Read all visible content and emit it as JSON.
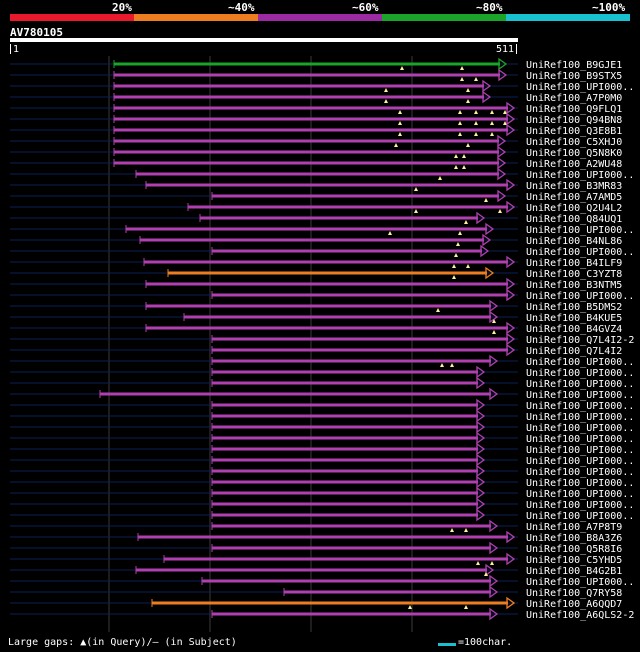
{
  "legend": {
    "segments": [
      {
        "label": "20%",
        "color": "#e8192c"
      },
      {
        "label": "~40%",
        "color": "#ee7d22"
      },
      {
        "label": "~60%",
        "color": "#9b2aa3"
      },
      {
        "label": "~80%",
        "color": "#1aa52a"
      },
      {
        "label": "~100%",
        "color": "#19c0d0"
      }
    ]
  },
  "query": {
    "name": "AV780105",
    "start": "1",
    "end": "511"
  },
  "footer": {
    "text": "Large gaps: ▲(in Query)/— (in Subject)",
    "scale_label": "=100char."
  },
  "colors": {
    "purple": "#b040b0",
    "green": "#1aa52a",
    "orange": "#ee7d22",
    "track": "#0d1f55",
    "grid": "#3a3a3a",
    "gap": "#fff0a0"
  },
  "hits": [
    {
      "name": "UniRef100_B9GJE1",
      "color": "green",
      "start": 114,
      "end": 506,
      "gaps": [
        402,
        462
      ]
    },
    {
      "name": "UniRef100_B9STX5",
      "color": "purple",
      "start": 114,
      "end": 506,
      "gaps": [
        462,
        476
      ]
    },
    {
      "name": "UniRef100_UPI000..",
      "color": "purple",
      "start": 114,
      "end": 490,
      "gaps": [
        386,
        468
      ]
    },
    {
      "name": "UniRef100_A7P0M0",
      "color": "purple",
      "start": 114,
      "end": 490,
      "gaps": [
        386,
        468
      ]
    },
    {
      "name": "UniRef100_Q9FLQ1",
      "color": "purple",
      "start": 114,
      "end": 514,
      "gaps": [
        400,
        460,
        476,
        492,
        505
      ]
    },
    {
      "name": "UniRef100_Q94BN8",
      "color": "purple",
      "start": 114,
      "end": 514,
      "gaps": [
        400,
        460,
        476,
        492,
        505
      ]
    },
    {
      "name": "UniRef100_Q3E8B1",
      "color": "purple",
      "start": 114,
      "end": 514,
      "gaps": [
        400,
        460,
        476,
        492
      ]
    },
    {
      "name": "UniRef100_C5XHJ0",
      "color": "purple",
      "start": 114,
      "end": 505,
      "gaps": [
        396,
        468
      ]
    },
    {
      "name": "UniRef100_Q5N8K0",
      "color": "purple",
      "start": 114,
      "end": 505,
      "gaps": [
        456,
        464
      ]
    },
    {
      "name": "UniRef100_A2WU48",
      "color": "purple",
      "start": 114,
      "end": 505,
      "gaps": [
        456,
        464
      ]
    },
    {
      "name": "UniRef100_UPI000..",
      "color": "purple",
      "start": 136,
      "end": 505,
      "gaps": [
        440
      ]
    },
    {
      "name": "UniRef100_B3MR83",
      "color": "purple",
      "start": 146,
      "end": 514,
      "gaps": [
        416
      ]
    },
    {
      "name": "UniRef100_A7AMD5",
      "color": "purple",
      "start": 212,
      "end": 505,
      "gaps": [
        486
      ]
    },
    {
      "name": "UniRef100_Q2U4L2",
      "color": "purple",
      "start": 188,
      "end": 514,
      "gaps": [
        416,
        500
      ]
    },
    {
      "name": "UniRef100_Q84UQ1",
      "color": "purple",
      "start": 200,
      "end": 484,
      "gaps": [
        466
      ]
    },
    {
      "name": "UniRef100_UPI000..",
      "color": "purple",
      "start": 126,
      "end": 493,
      "gaps": [
        390,
        460
      ]
    },
    {
      "name": "UniRef100_B4NL86",
      "color": "purple",
      "start": 140,
      "end": 490,
      "gaps": [
        458
      ]
    },
    {
      "name": "UniRef100_UPI000..",
      "color": "purple",
      "start": 212,
      "end": 488,
      "gaps": [
        456
      ]
    },
    {
      "name": "UniRef100_B4ILF9",
      "color": "purple",
      "start": 144,
      "end": 514,
      "gaps": [
        454,
        468
      ]
    },
    {
      "name": "UniRef100_C3YZT8",
      "color": "orange",
      "start": 168,
      "end": 493,
      "gaps": [
        454
      ]
    },
    {
      "name": "UniRef100_B3NTM5",
      "color": "purple",
      "start": 146,
      "end": 514,
      "gaps": []
    },
    {
      "name": "UniRef100_UPI000..",
      "color": "purple",
      "start": 212,
      "end": 514,
      "gaps": []
    },
    {
      "name": "UniRef100_B5DMS2",
      "color": "purple",
      "start": 146,
      "end": 497,
      "gaps": [
        438
      ]
    },
    {
      "name": "UniRef100_B4KUE5",
      "color": "purple",
      "start": 184,
      "end": 497,
      "gaps": [
        494
      ]
    },
    {
      "name": "UniRef100_B4GVZ4",
      "color": "purple",
      "start": 146,
      "end": 514,
      "gaps": [
        494
      ]
    },
    {
      "name": "UniRef100_Q7L4I2-2",
      "color": "purple",
      "start": 212,
      "end": 514,
      "gaps": []
    },
    {
      "name": "UniRef100_Q7L4I2",
      "color": "purple",
      "start": 212,
      "end": 514,
      "gaps": []
    },
    {
      "name": "UniRef100_UPI000..",
      "color": "purple",
      "start": 212,
      "end": 497,
      "gaps": [
        442,
        452
      ]
    },
    {
      "name": "UniRef100_UPI000..",
      "color": "purple",
      "start": 212,
      "end": 484,
      "gaps": []
    },
    {
      "name": "UniRef100_UPI000..",
      "color": "purple",
      "start": 212,
      "end": 484,
      "gaps": []
    },
    {
      "name": "UniRef100_UPI000..",
      "color": "purple",
      "start": 100,
      "end": 497,
      "gaps": []
    },
    {
      "name": "UniRef100_UPI000..",
      "color": "purple",
      "start": 212,
      "end": 484,
      "gaps": []
    },
    {
      "name": "UniRef100_UPI000..",
      "color": "purple",
      "start": 212,
      "end": 484,
      "gaps": []
    },
    {
      "name": "UniRef100_UPI000..",
      "color": "purple",
      "start": 212,
      "end": 484,
      "gaps": []
    },
    {
      "name": "UniRef100_UPI000..",
      "color": "purple",
      "start": 212,
      "end": 484,
      "gaps": []
    },
    {
      "name": "UniRef100_UPI000..",
      "color": "purple",
      "start": 212,
      "end": 484,
      "gaps": []
    },
    {
      "name": "UniRef100_UPI000..",
      "color": "purple",
      "start": 212,
      "end": 484,
      "gaps": []
    },
    {
      "name": "UniRef100_UPI000..",
      "color": "purple",
      "start": 212,
      "end": 484,
      "gaps": []
    },
    {
      "name": "UniRef100_UPI000..",
      "color": "purple",
      "start": 212,
      "end": 484,
      "gaps": []
    },
    {
      "name": "UniRef100_UPI000..",
      "color": "purple",
      "start": 212,
      "end": 484,
      "gaps": []
    },
    {
      "name": "UniRef100_UPI000..",
      "color": "purple",
      "start": 212,
      "end": 484,
      "gaps": []
    },
    {
      "name": "UniRef100_UPI000..",
      "color": "purple",
      "start": 212,
      "end": 484,
      "gaps": []
    },
    {
      "name": "UniRef100_A7P8T9",
      "color": "purple",
      "start": 212,
      "end": 497,
      "gaps": [
        452,
        466
      ]
    },
    {
      "name": "UniRef100_B8A3Z6",
      "color": "purple",
      "start": 138,
      "end": 514,
      "gaps": []
    },
    {
      "name": "UniRef100_Q5R8I6",
      "color": "purple",
      "start": 212,
      "end": 497,
      "gaps": []
    },
    {
      "name": "UniRef100_C5YHD5",
      "color": "purple",
      "start": 164,
      "end": 514,
      "gaps": [
        478,
        492
      ]
    },
    {
      "name": "UniRef100_B4G2B1",
      "color": "purple",
      "start": 136,
      "end": 493,
      "gaps": [
        486
      ]
    },
    {
      "name": "UniRef100_UPI000..",
      "color": "purple",
      "start": 202,
      "end": 497,
      "gaps": []
    },
    {
      "name": "UniRef100_Q7RY58",
      "color": "purple",
      "start": 284,
      "end": 497,
      "gaps": []
    },
    {
      "name": "UniRef100_A6QQD7",
      "color": "orange",
      "start": 152,
      "end": 514,
      "gaps": [
        410,
        466
      ]
    },
    {
      "name": "UniRef100_A6QLS2-2",
      "color": "purple",
      "start": 212,
      "end": 497,
      "gaps": []
    }
  ]
}
